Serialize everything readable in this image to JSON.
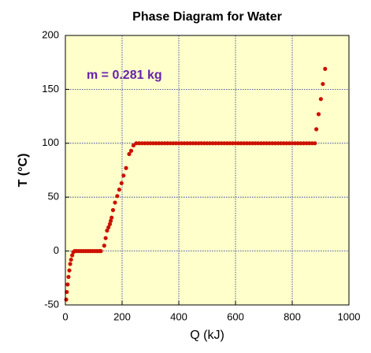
{
  "chart_data": {
    "type": "scatter",
    "title": "Phase Diagram for Water",
    "x_label": "Q (kJ)",
    "y_label": "T (°C)",
    "annotation": "m = 0.281 kg",
    "color": "#cc1100",
    "grid": true,
    "xlim": [
      0,
      1000
    ],
    "xticks": [
      0,
      200,
      400,
      600,
      800,
      1000
    ],
    "ylim": [
      -50,
      200
    ],
    "yticks": [
      -50,
      0,
      50,
      100,
      150,
      200
    ],
    "x": [
      3,
      5,
      8,
      11,
      14,
      17,
      20,
      24,
      28,
      33,
      40,
      48,
      56,
      64,
      72,
      80,
      88,
      96,
      104,
      112,
      120,
      125,
      137,
      142,
      147,
      152,
      157,
      160,
      163,
      168,
      175,
      183,
      190,
      198,
      205,
      214,
      225,
      232,
      240,
      250,
      260,
      270,
      280,
      290,
      300,
      310,
      320,
      330,
      340,
      350,
      360,
      370,
      380,
      390,
      400,
      410,
      420,
      430,
      440,
      450,
      460,
      470,
      480,
      490,
      500,
      510,
      520,
      530,
      540,
      550,
      560,
      570,
      580,
      590,
      600,
      610,
      620,
      630,
      640,
      650,
      660,
      670,
      680,
      690,
      700,
      710,
      720,
      730,
      740,
      750,
      760,
      770,
      780,
      790,
      800,
      810,
      820,
      830,
      840,
      850,
      860,
      870,
      880,
      885,
      893,
      901,
      908,
      916
    ],
    "values": [
      -45,
      -38,
      -31,
      -24,
      -18,
      -12,
      -8,
      -4,
      -1,
      0,
      0,
      0,
      0,
      0,
      0,
      0,
      0,
      0,
      0,
      0,
      0,
      0,
      5,
      12,
      19,
      22,
      25,
      28,
      31,
      38,
      45,
      51,
      57,
      63,
      70,
      77,
      90,
      93,
      98,
      100,
      100,
      100,
      100,
      100,
      100,
      100,
      100,
      100,
      100,
      100,
      100,
      100,
      100,
      100,
      100,
      100,
      100,
      100,
      100,
      100,
      100,
      100,
      100,
      100,
      100,
      100,
      100,
      100,
      100,
      100,
      100,
      100,
      100,
      100,
      100,
      100,
      100,
      100,
      100,
      100,
      100,
      100,
      100,
      100,
      100,
      100,
      100,
      100,
      100,
      100,
      100,
      100,
      100,
      100,
      100,
      100,
      100,
      100,
      100,
      100,
      100,
      100,
      100,
      113,
      127,
      141,
      155,
      169
    ]
  }
}
